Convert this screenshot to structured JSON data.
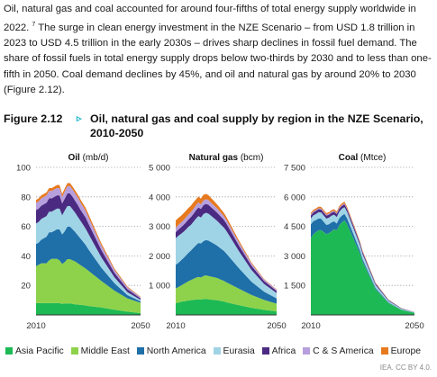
{
  "paragraph": {
    "text_before": "Oil, natural gas and coal accounted for around four-fifths of total energy supply worldwide in 2022. ",
    "footnote": "7",
    "text_after": " The surge in clean energy investment in the NZE Scenario – from USD 1.8 trillion in 2023 to USD 4.5 trillion in the early 2030s – drives sharp declines in fossil fuel demand. The share of fossil fuels in total energy supply drops below two-thirds by 2030 and to less than one-fifth in 2050. Coal demand declines by 45%, and oil and natural gas by around 20% to 2030 (Figure 2.12)."
  },
  "figure": {
    "label": "Figure 2.12",
    "arrow": "▹",
    "title": "Oil, natural gas and coal supply by region in the NZE Scenario, 2010-2050"
  },
  "credit": "IEA. CC BY 4.0.",
  "colors": {
    "Asia Pacific": "#1db954",
    "Middle East": "#8ed24b",
    "North America": "#1f6fa8",
    "Eurasia": "#9fd4e6",
    "Africa": "#4b2a82",
    "C & S America": "#b69fdc",
    "Europe": "#e77a1f"
  },
  "chart_data": [
    {
      "type": "area",
      "stacked": true,
      "title_bold": "Oil",
      "title_unit": " (mb/d)",
      "x": [
        2010,
        2011,
        2012,
        2013,
        2014,
        2015,
        2016,
        2017,
        2018,
        2019,
        2020,
        2021,
        2022,
        2023,
        2024,
        2025,
        2026,
        2027,
        2028,
        2029,
        2030,
        2035,
        2040,
        2045,
        2050
      ],
      "xticks": [
        "2010",
        "2050"
      ],
      "ylim": [
        0,
        100
      ],
      "yticks": [
        20,
        40,
        60,
        80,
        100
      ],
      "ytick_labels": [
        "20",
        "40",
        "60",
        "80",
        "100"
      ],
      "series": [
        {
          "name": "Asia Pacific",
          "values": [
            8,
            8,
            8,
            8,
            8,
            8,
            8,
            8,
            8,
            8,
            7.5,
            7.8,
            7.8,
            7.8,
            7.5,
            7.2,
            7,
            6.8,
            6.6,
            6.4,
            6,
            5,
            3.5,
            2.2,
            1.2
          ]
        },
        {
          "name": "Middle East",
          "values": [
            25,
            26,
            27,
            27,
            27,
            29,
            30,
            30,
            30,
            29,
            27,
            28,
            30,
            30,
            29.5,
            29,
            28,
            27,
            26,
            25,
            24,
            18,
            13,
            9,
            7
          ]
        },
        {
          "name": "North America",
          "values": [
            15,
            15,
            16,
            17,
            18,
            19,
            18,
            19,
            20,
            21,
            20,
            21,
            22,
            22,
            21,
            20,
            19,
            18,
            17,
            16,
            14.6,
            9,
            5,
            2.2,
            1
          ]
        },
        {
          "name": "Eurasia",
          "values": [
            14,
            14,
            14,
            14,
            14,
            14,
            14,
            14,
            14,
            14,
            13,
            14,
            14,
            14,
            13.5,
            13,
            12.5,
            12,
            11.5,
            11,
            10.5,
            7,
            4,
            2,
            1
          ]
        },
        {
          "name": "Africa",
          "values": [
            9,
            9,
            9,
            9,
            9,
            9,
            9,
            9,
            9,
            9,
            8,
            8,
            8.5,
            8.5,
            8.5,
            8,
            8,
            7.5,
            7.5,
            7.5,
            7,
            5,
            3,
            2,
            1
          ]
        },
        {
          "name": "C & S America",
          "values": [
            5,
            5,
            5,
            5,
            5,
            5,
            5,
            5,
            5,
            5,
            4.5,
            5,
            5,
            5,
            5,
            5,
            5,
            5,
            4.8,
            4.6,
            4.4,
            3,
            2,
            1.2,
            0.8
          ]
        },
        {
          "name": "Europe",
          "values": [
            2,
            2,
            2,
            2,
            2,
            2,
            2,
            2,
            2,
            2,
            2,
            2,
            2,
            2,
            2,
            2,
            2,
            2,
            2,
            2,
            2,
            1.5,
            1,
            0.6,
            0.3
          ]
        }
      ]
    },
    {
      "type": "area",
      "stacked": true,
      "title_bold": "Natural gas",
      "title_unit": " (bcm)",
      "x": [
        2010,
        2011,
        2012,
        2013,
        2014,
        2015,
        2016,
        2017,
        2018,
        2019,
        2020,
        2021,
        2022,
        2023,
        2024,
        2025,
        2026,
        2027,
        2028,
        2029,
        2030,
        2035,
        2040,
        2045,
        2050
      ],
      "xticks": [
        "2010",
        "2050"
      ],
      "ylim": [
        0,
        5000
      ],
      "yticks": [
        1000,
        2000,
        3000,
        4000,
        5000
      ],
      "ytick_labels": [
        "1 000",
        "2 000",
        "3 000",
        "4 000",
        "5 000"
      ],
      "series": [
        {
          "name": "Asia Pacific",
          "values": [
            400,
            420,
            440,
            460,
            470,
            490,
            500,
            510,
            520,
            530,
            520,
            540,
            540,
            530,
            520,
            510,
            500,
            490,
            470,
            460,
            430,
            330,
            240,
            170,
            120
          ]
        },
        {
          "name": "Middle East",
          "values": [
            500,
            520,
            550,
            580,
            620,
            650,
            680,
            710,
            740,
            760,
            750,
            780,
            800,
            790,
            780,
            770,
            760,
            740,
            720,
            700,
            680,
            560,
            440,
            340,
            260
          ]
        },
        {
          "name": "North America",
          "values": [
            800,
            820,
            850,
            880,
            920,
            960,
            1000,
            1050,
            1100,
            1150,
            1150,
            1180,
            1200,
            1200,
            1170,
            1140,
            1110,
            1080,
            1050,
            1020,
            980,
            700,
            450,
            280,
            180
          ]
        },
        {
          "name": "Eurasia",
          "values": [
            900,
            920,
            900,
            890,
            880,
            880,
            870,
            880,
            900,
            910,
            880,
            920,
            920,
            910,
            890,
            870,
            850,
            830,
            810,
            790,
            770,
            580,
            400,
            260,
            180
          ]
        },
        {
          "name": "Africa",
          "values": [
            200,
            210,
            220,
            230,
            240,
            250,
            260,
            270,
            280,
            290,
            290,
            300,
            300,
            300,
            290,
            285,
            280,
            275,
            270,
            260,
            250,
            190,
            140,
            100,
            70
          ]
        },
        {
          "name": "C & S America",
          "values": [
            150,
            155,
            160,
            165,
            165,
            170,
            170,
            170,
            170,
            170,
            160,
            160,
            160,
            160,
            155,
            150,
            145,
            140,
            135,
            130,
            125,
            100,
            70,
            50,
            40
          ]
        },
        {
          "name": "Europe",
          "values": [
            250,
            240,
            230,
            230,
            230,
            220,
            220,
            220,
            200,
            200,
            190,
            190,
            180,
            170,
            160,
            150,
            140,
            130,
            120,
            110,
            100,
            70,
            40,
            20,
            10
          ]
        }
      ]
    },
    {
      "type": "area",
      "stacked": true,
      "title_bold": "Coal",
      "title_unit": " (Mtce)",
      "x": [
        2010,
        2011,
        2012,
        2013,
        2014,
        2015,
        2016,
        2017,
        2018,
        2019,
        2020,
        2021,
        2022,
        2023,
        2024,
        2025,
        2026,
        2027,
        2028,
        2029,
        2030,
        2035,
        2040,
        2045,
        2050
      ],
      "xticks": [
        "2010",
        "2050"
      ],
      "ylim": [
        0,
        7500
      ],
      "yticks": [
        1500,
        3000,
        4500,
        6000,
        7500
      ],
      "ytick_labels": [
        "1 500",
        "3 000",
        "4 500",
        "6 000",
        "7 500"
      ],
      "series": [
        {
          "name": "Asia Pacific",
          "values": [
            3900,
            4100,
            4200,
            4300,
            4300,
            4200,
            4100,
            4150,
            4250,
            4350,
            4300,
            4550,
            4700,
            4800,
            4600,
            4300,
            4000,
            3700,
            3400,
            3100,
            2700,
            1300,
            600,
            250,
            100
          ]
        },
        {
          "name": "Middle East",
          "values": [
            5,
            5,
            5,
            5,
            5,
            5,
            5,
            5,
            5,
            5,
            5,
            5,
            5,
            5,
            5,
            5,
            5,
            5,
            5,
            5,
            5,
            5,
            5,
            5,
            5
          ]
        },
        {
          "name": "North America",
          "values": [
            700,
            660,
            620,
            600,
            580,
            520,
            470,
            460,
            450,
            400,
            340,
            360,
            350,
            330,
            300,
            270,
            240,
            210,
            180,
            150,
            120,
            60,
            30,
            15,
            10
          ]
        },
        {
          "name": "Eurasia",
          "values": [
            300,
            300,
            310,
            320,
            320,
            320,
            320,
            330,
            340,
            340,
            330,
            340,
            340,
            340,
            330,
            320,
            310,
            300,
            290,
            270,
            250,
            150,
            80,
            40,
            20
          ]
        },
        {
          "name": "Africa",
          "values": [
            150,
            150,
            150,
            150,
            150,
            150,
            150,
            150,
            150,
            150,
            150,
            150,
            150,
            150,
            140,
            135,
            130,
            125,
            120,
            115,
            110,
            70,
            40,
            20,
            10
          ]
        },
        {
          "name": "C & S America",
          "values": [
            50,
            50,
            50,
            50,
            50,
            50,
            50,
            50,
            50,
            50,
            50,
            50,
            50,
            50,
            45,
            45,
            40,
            40,
            35,
            35,
            30,
            20,
            10,
            5,
            5
          ]
        },
        {
          "name": "Europe",
          "values": [
            80,
            80,
            80,
            80,
            80,
            80,
            80,
            80,
            80,
            80,
            80,
            80,
            80,
            80,
            75,
            70,
            65,
            60,
            55,
            50,
            45,
            30,
            15,
            10,
            5
          ]
        }
      ]
    }
  ],
  "legend": [
    "Asia Pacific",
    "Middle East",
    "North America",
    "Eurasia",
    "Africa",
    "C & S America",
    "Europe"
  ]
}
